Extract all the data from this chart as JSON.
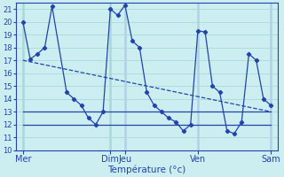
{
  "background_color": "#cceef0",
  "grid_color": "#aadddd",
  "line_color": "#2244aa",
  "xlabel": "Température (°c)",
  "ylim": [
    10,
    21.5
  ],
  "yticks": [
    10,
    11,
    12,
    13,
    14,
    15,
    16,
    17,
    18,
    19,
    20,
    21
  ],
  "xlim": [
    0,
    36
  ],
  "day_labels": [
    "Mer",
    "Dim",
    "Jeu",
    "Ven",
    "Sam"
  ],
  "day_positions": [
    1,
    13,
    15,
    25,
    35
  ],
  "vline_positions": [
    1,
    13,
    15,
    25,
    35
  ],
  "series_main": {
    "x": [
      1,
      2,
      3,
      4,
      5,
      7,
      8,
      9,
      10,
      11,
      12,
      13,
      14,
      15,
      16,
      17,
      18,
      19,
      20,
      21,
      22,
      23,
      24,
      25,
      26,
      27,
      28,
      29,
      30,
      31,
      32,
      33,
      34,
      35
    ],
    "y": [
      20,
      17.1,
      17.5,
      18.0,
      21.2,
      14.5,
      14.0,
      13.5,
      12.5,
      12.0,
      13.0,
      21.0,
      20.5,
      21.3,
      18.5,
      18.0,
      14.5,
      13.5,
      13.0,
      12.5,
      12.2,
      11.5,
      12.0,
      19.3,
      19.2,
      15.0,
      14.5,
      11.5,
      11.3,
      12.2,
      17.5,
      17.0,
      14.0,
      13.5
    ]
  },
  "series_lines": [
    {
      "x": [
        1,
        35
      ],
      "y": [
        17.0,
        13.0
      ],
      "linestyle": "--",
      "linewidth": 0.9
    },
    {
      "x": [
        1,
        35
      ],
      "y": [
        13.0,
        13.0
      ],
      "linestyle": "-",
      "linewidth": 0.9
    },
    {
      "x": [
        1,
        35
      ],
      "y": [
        12.0,
        12.0
      ],
      "linestyle": "-",
      "linewidth": 0.9
    }
  ]
}
